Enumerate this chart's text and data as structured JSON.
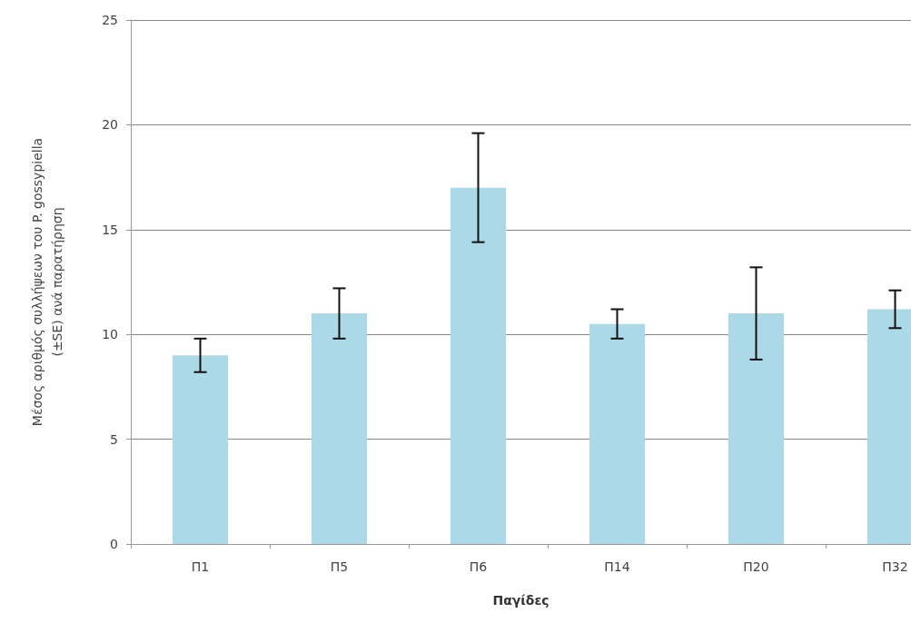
{
  "chart_data": {
    "type": "bar",
    "xlabel": "Παγίδες",
    "ylabel": "Μέσος αριθμός συλλήψεων του P. gossypiella\n(±SE) ανά παρατήρηση",
    "categories": [
      "Π1",
      "Π5",
      "Π6",
      "Π14",
      "Π20",
      "Π32"
    ],
    "values": [
      9,
      11,
      17,
      10.5,
      11,
      11.2
    ],
    "errors": [
      0.8,
      1.2,
      2.6,
      0.7,
      2.2,
      0.9
    ],
    "color": "#acd9e8",
    "ylim": [
      0,
      25
    ],
    "yticks": [
      0,
      5,
      10,
      15,
      20,
      25
    ],
    "grid": "y"
  }
}
